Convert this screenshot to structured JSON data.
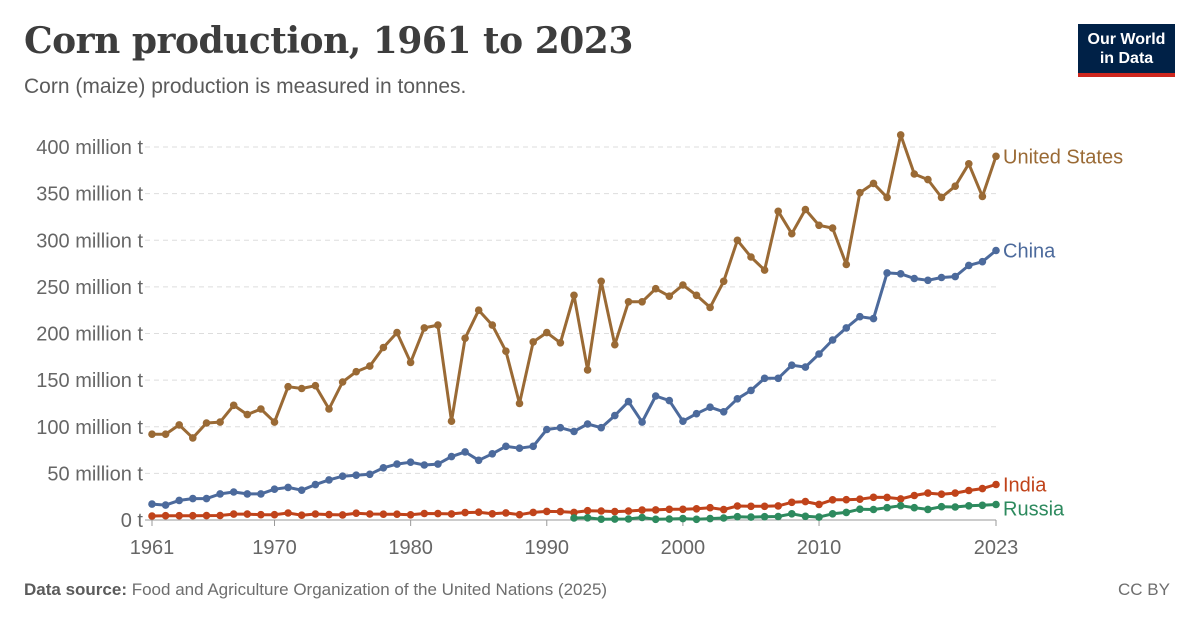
{
  "header": {
    "title": "Corn production, 1961 to 2023",
    "subtitle": "Corn (maize) production is measured in tonnes.",
    "logo_line1": "Our World",
    "logo_line2": "in Data"
  },
  "footer": {
    "source_label": "Data source:",
    "source_text": "Food and Agriculture Organization of the United Nations (2025)",
    "license": "CC BY"
  },
  "chart_data": {
    "type": "line",
    "title": "Corn production, 1961 to 2023",
    "subtitle": "Corn (maize) production is measured in tonnes.",
    "ylabel": "",
    "xlabel": "",
    "xlim": [
      1961,
      2023
    ],
    "ylim": [
      0,
      400
    ],
    "y_unit": "million t",
    "y_ticks": [
      {
        "value": 0,
        "label": "0 t"
      },
      {
        "value": 50,
        "label": "50 million t"
      },
      {
        "value": 100,
        "label": "100 million t"
      },
      {
        "value": 150,
        "label": "150 million t"
      },
      {
        "value": 200,
        "label": "200 million t"
      },
      {
        "value": 250,
        "label": "250 million t"
      },
      {
        "value": 300,
        "label": "300 million t"
      },
      {
        "value": 350,
        "label": "350 million t"
      },
      {
        "value": 400,
        "label": "400 million t"
      }
    ],
    "x_ticks": [
      {
        "value": 1961,
        "label": "1961"
      },
      {
        "value": 1970,
        "label": "1970"
      },
      {
        "value": 1980,
        "label": "1980"
      },
      {
        "value": 1990,
        "label": "1990"
      },
      {
        "value": 2000,
        "label": "2000"
      },
      {
        "value": 2010,
        "label": "2010"
      },
      {
        "value": 2023,
        "label": "2023"
      }
    ],
    "grid": "horizontal dashed",
    "legend": "inline labels at line ends (right)",
    "series": [
      {
        "name": "United States",
        "color": "#9a6a35",
        "start_year": 1961,
        "values": [
          92,
          92,
          102,
          88,
          104,
          105,
          123,
          113,
          119,
          105,
          143,
          141,
          144,
          119,
          148,
          159,
          165,
          185,
          201,
          169,
          206,
          209,
          106,
          195,
          225,
          209,
          181,
          125,
          191,
          201,
          190,
          241,
          161,
          256,
          188,
          234,
          234,
          248,
          240,
          252,
          241,
          228,
          256,
          300,
          282,
          268,
          331,
          307,
          333,
          316,
          313,
          274,
          351,
          361,
          346,
          413,
          371,
          365,
          346,
          358,
          382,
          347,
          390
        ]
      },
      {
        "name": "China",
        "color": "#4c6a9c",
        "start_year": 1961,
        "values": [
          17,
          16,
          21,
          23,
          23,
          28,
          30,
          28,
          28,
          33,
          35,
          32,
          38,
          43,
          47,
          48,
          49,
          56,
          60,
          62,
          59,
          60,
          68,
          73,
          64,
          71,
          79,
          77,
          79,
          97,
          99,
          95,
          103,
          99,
          112,
          127,
          105,
          133,
          128,
          106,
          114,
          121,
          116,
          130,
          139,
          152,
          152,
          166,
          164,
          178,
          193,
          206,
          218,
          216,
          265,
          264,
          259,
          257,
          260,
          261,
          273,
          277,
          289
        ]
      },
      {
        "name": "India",
        "color": "#c0431a",
        "start_year": 1961,
        "values": [
          4.3,
          4.6,
          4.6,
          4.6,
          4.7,
          4.8,
          6.3,
          6.3,
          5.7,
          5.7,
          7.5,
          5.1,
          6.4,
          5.8,
          5.5,
          7.3,
          6.4,
          6.2,
          6.2,
          5.6,
          7.0,
          6.9,
          6.5,
          7.9,
          8.4,
          6.6,
          7.6,
          5.7,
          8.2,
          9.2,
          9.0,
          8.2,
          10.0,
          9.6,
          9.0,
          9.5,
          10.6,
          10.8,
          11.5,
          11.5,
          12.0,
          13.2,
          11.2,
          15.0,
          14.7,
          14.7,
          15.1,
          19.0,
          19.7,
          16.7,
          21.7,
          21.8,
          22.3,
          24.3,
          24.2,
          22.6,
          26.3,
          28.8,
          27.7,
          28.8,
          31.6,
          33.7,
          38.1
        ]
      },
      {
        "name": "Russia",
        "color": "#2d8a5e",
        "start_year": 1992,
        "values": [
          2.1,
          2.4,
          0.9,
          1.0,
          1.1,
          2.7,
          0.8,
          1.1,
          1.5,
          0.8,
          1.5,
          2.1,
          3.5,
          3.1,
          3.5,
          3.8,
          6.7,
          4.0,
          3.1,
          6.7,
          8.2,
          11.6,
          11.3,
          13.2,
          15.3,
          13.2,
          11.4,
          14.3,
          13.9,
          15.2,
          15.8,
          16.6
        ]
      }
    ]
  }
}
